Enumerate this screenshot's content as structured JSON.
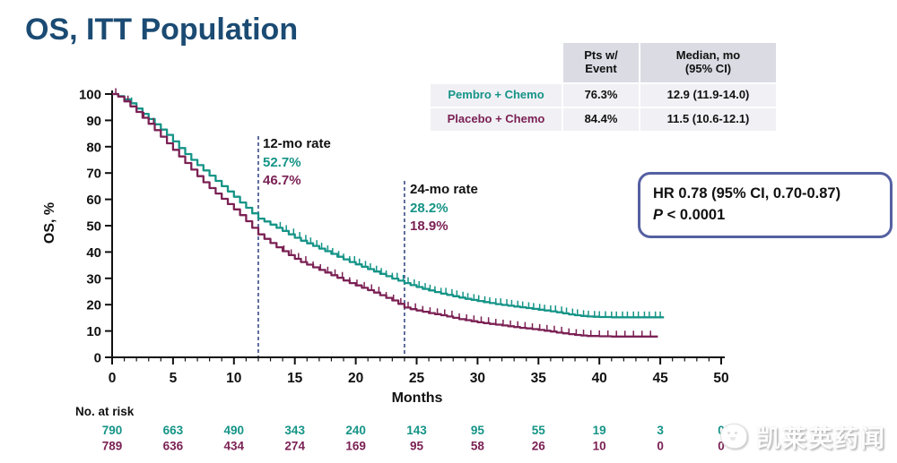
{
  "title": "OS, ITT Population",
  "summary_table": {
    "corner": "",
    "col_pts": "Pts w/\nEvent",
    "col_median": "Median, mo\n(95% CI)",
    "rows": [
      {
        "label": "Pembro + Chemo",
        "pts": "76.3%",
        "median": "12.9 (11.9-14.0)"
      },
      {
        "label": "Placebo + Chemo",
        "pts": "84.4%",
        "median": "11.5 (10.6-12.1)"
      }
    ]
  },
  "annotations": {
    "rate12": {
      "title": "12-mo rate",
      "pembro": "52.7%",
      "placebo": "46.7%"
    },
    "rate24": {
      "title": "24-mo rate",
      "pembro": "28.2%",
      "placebo": "18.9%"
    }
  },
  "hr_box": {
    "line1": "HR 0.78 (95% CI, 0.70-0.87)",
    "p_italic": "P",
    "p_rest": " < 0.0001"
  },
  "axes": {
    "xlabel": "Months",
    "ylabel": "OS, %"
  },
  "at_risk": {
    "label": "No. at risk",
    "months": [
      0,
      5,
      10,
      15,
      20,
      25,
      30,
      35,
      40,
      45,
      50
    ],
    "rows": [
      {
        "name": "Pembro + Chemo",
        "color": "#159487",
        "values": [
          790,
          663,
          490,
          343,
          240,
          143,
          95,
          55,
          19,
          3,
          0
        ]
      },
      {
        "name": "Placebo + Chemo",
        "color": "#7b2154",
        "values": [
          789,
          636,
          434,
          274,
          169,
          95,
          58,
          26,
          10,
          0,
          0
        ]
      }
    ]
  },
  "watermark": {
    "text": "凯莱英药闻"
  },
  "colors": {
    "title": "#1b4b73",
    "teal": "#159487",
    "maroon": "#7b2154",
    "dashed": "#3a4b85",
    "hr_border": "#5560a2",
    "table_header_bg": "#dadbe3",
    "table_row_bg": "#f0f0f5",
    "axis": "#111111"
  },
  "chart_data": {
    "type": "line",
    "subtype": "kaplan-meier",
    "title": "OS, ITT Population",
    "xlabel": "Months",
    "ylabel": "OS, %",
    "xlim": [
      0,
      50
    ],
    "ylim": [
      0,
      100
    ],
    "x_ticks": [
      0,
      5,
      10,
      15,
      20,
      25,
      30,
      35,
      40,
      45,
      50
    ],
    "x_minor_tick_interval": 1,
    "y_ticks": [
      0,
      10,
      20,
      30,
      40,
      50,
      60,
      70,
      80,
      90,
      100
    ],
    "grid": false,
    "legend_position": "none",
    "reference_lines": [
      {
        "x": 12,
        "label": "12-mo rate",
        "top_pct": 84
      },
      {
        "x": 24,
        "label": "24-mo rate",
        "top_pct": 67
      }
    ],
    "series": [
      {
        "name": "Pembro + Chemo",
        "color": "#159487",
        "points": [
          [
            0,
            100
          ],
          [
            0.5,
            99.2
          ],
          [
            1,
            98
          ],
          [
            1.5,
            96.5
          ],
          [
            2,
            94.5
          ],
          [
            2.5,
            92.5
          ],
          [
            3,
            90.5
          ],
          [
            3.5,
            88.5
          ],
          [
            4,
            86.5
          ],
          [
            4.5,
            84.5
          ],
          [
            5,
            82
          ],
          [
            5.5,
            79.5
          ],
          [
            6,
            77.2
          ],
          [
            6.5,
            75
          ],
          [
            7,
            73
          ],
          [
            7.5,
            71
          ],
          [
            8,
            69
          ],
          [
            8.5,
            67
          ],
          [
            9,
            65
          ],
          [
            9.5,
            63
          ],
          [
            10,
            61
          ],
          [
            10.5,
            58.8
          ],
          [
            11,
            56.8
          ],
          [
            11.5,
            54.7
          ],
          [
            12,
            52.7
          ],
          [
            12.5,
            51.6
          ],
          [
            13,
            50.4
          ],
          [
            13.5,
            49.2
          ],
          [
            14,
            48
          ],
          [
            14.5,
            46.7
          ],
          [
            15,
            45.4
          ],
          [
            15.5,
            44.3
          ],
          [
            16,
            43.3
          ],
          [
            16.5,
            42.3
          ],
          [
            17,
            41.3
          ],
          [
            17.5,
            40.3
          ],
          [
            18,
            39.3
          ],
          [
            18.5,
            38.2
          ],
          [
            19,
            37.2
          ],
          [
            19.5,
            36.2
          ],
          [
            20,
            35.3
          ],
          [
            20.5,
            34.4
          ],
          [
            21,
            33.5
          ],
          [
            21.5,
            32.6
          ],
          [
            22,
            31.7
          ],
          [
            22.5,
            30.8
          ],
          [
            23,
            29.9
          ],
          [
            23.5,
            29.1
          ],
          [
            24,
            28.2
          ],
          [
            24.5,
            27.4
          ],
          [
            25,
            26.7
          ],
          [
            25.5,
            26
          ],
          [
            26,
            25.4
          ],
          [
            26.5,
            24.8
          ],
          [
            27,
            24.2
          ],
          [
            27.5,
            23.7
          ],
          [
            28,
            23.2
          ],
          [
            28.5,
            22.7
          ],
          [
            29,
            22.2
          ],
          [
            29.5,
            21.8
          ],
          [
            30,
            21.4
          ],
          [
            30.5,
            21
          ],
          [
            31,
            20.6
          ],
          [
            31.5,
            20.2
          ],
          [
            32,
            19.9
          ],
          [
            32.5,
            19.6
          ],
          [
            33,
            19.3
          ],
          [
            33.5,
            19
          ],
          [
            34,
            18.7
          ],
          [
            34.5,
            18.4
          ],
          [
            35,
            18.1
          ],
          [
            35.5,
            17.8
          ],
          [
            36,
            17.5
          ],
          [
            36.5,
            17.1
          ],
          [
            37,
            16.7
          ],
          [
            37.5,
            16.3
          ],
          [
            38,
            16
          ],
          [
            38.5,
            15.7
          ],
          [
            39,
            15.5
          ],
          [
            39.5,
            15.4
          ],
          [
            40,
            15.3
          ],
          [
            41,
            15.2
          ],
          [
            42,
            15.2
          ],
          [
            43,
            15.2
          ],
          [
            44,
            15.2
          ],
          [
            45.3,
            15.2
          ]
        ],
        "censor_marks": [
          1.6,
          13.8,
          14.3,
          14.9,
          15.4,
          15.9,
          16.3,
          16.8,
          17.2,
          17.7,
          18.1,
          18.6,
          19,
          19.5,
          19.9,
          20.3,
          20.8,
          21.2,
          21.7,
          22.1,
          22.5,
          23,
          23.4,
          23.9,
          24.3,
          24.8,
          25.2,
          25.7,
          26.1,
          26.5,
          27,
          27.4,
          27.9,
          28.3,
          28.8,
          29.2,
          29.7,
          30.1,
          30.6,
          31,
          31.5,
          31.9,
          32.4,
          32.8,
          33.3,
          33.7,
          34.2,
          34.6,
          35.1,
          35.5,
          36,
          36.4,
          36.9,
          37.3,
          37.8,
          38.2,
          38.7,
          39.1,
          39.6,
          40,
          40.5,
          41,
          41.4,
          41.9,
          42.3,
          42.8,
          43.2,
          43.7,
          44.1,
          44.6,
          45
        ]
      },
      {
        "name": "Placebo + Chemo",
        "color": "#7b2154",
        "points": [
          [
            0,
            100
          ],
          [
            0.5,
            99
          ],
          [
            1,
            97.2
          ],
          [
            1.5,
            95.3
          ],
          [
            2,
            93.2
          ],
          [
            2.5,
            91
          ],
          [
            3,
            88.7
          ],
          [
            3.5,
            86.3
          ],
          [
            4,
            83.8
          ],
          [
            4.5,
            81.3
          ],
          [
            5,
            78.8
          ],
          [
            5.5,
            76.3
          ],
          [
            6,
            73.8
          ],
          [
            6.5,
            71.3
          ],
          [
            7,
            68.8
          ],
          [
            7.5,
            66.5
          ],
          [
            8,
            64.3
          ],
          [
            8.5,
            62.2
          ],
          [
            9,
            60.2
          ],
          [
            9.5,
            58.2
          ],
          [
            10,
            56.2
          ],
          [
            10.5,
            54
          ],
          [
            11,
            51.7
          ],
          [
            11.5,
            49.2
          ],
          [
            12,
            46.7
          ],
          [
            12.5,
            45
          ],
          [
            13,
            43.4
          ],
          [
            13.5,
            41.8
          ],
          [
            14,
            40.3
          ],
          [
            14.5,
            38.8
          ],
          [
            15,
            37.4
          ],
          [
            15.5,
            36.2
          ],
          [
            16,
            35.2
          ],
          [
            16.5,
            34.2
          ],
          [
            17,
            33.2
          ],
          [
            17.5,
            32.2
          ],
          [
            18,
            31.2
          ],
          [
            18.5,
            30.2
          ],
          [
            19,
            29.2
          ],
          [
            19.5,
            28.2
          ],
          [
            20,
            27.3
          ],
          [
            20.5,
            26.4
          ],
          [
            21,
            25.5
          ],
          [
            21.5,
            24.6
          ],
          [
            22,
            23.6
          ],
          [
            22.5,
            22.6
          ],
          [
            23,
            21.6
          ],
          [
            23.5,
            20.3
          ],
          [
            24,
            18.9
          ],
          [
            24.5,
            18.3
          ],
          [
            25,
            17.8
          ],
          [
            25.5,
            17.3
          ],
          [
            26,
            16.8
          ],
          [
            26.5,
            16.4
          ],
          [
            27,
            16
          ],
          [
            27.5,
            15.5
          ],
          [
            28,
            15
          ],
          [
            28.5,
            14.5
          ],
          [
            29,
            14.1
          ],
          [
            29.5,
            13.7
          ],
          [
            30,
            13.3
          ],
          [
            30.5,
            13
          ],
          [
            31,
            12.7
          ],
          [
            31.5,
            12.4
          ],
          [
            32,
            12.1
          ],
          [
            32.5,
            11.8
          ],
          [
            33,
            11.5
          ],
          [
            33.5,
            11.2
          ],
          [
            34,
            11
          ],
          [
            34.5,
            10.7
          ],
          [
            35,
            10.4
          ],
          [
            35.5,
            10.1
          ],
          [
            36,
            9.8
          ],
          [
            36.5,
            9.4
          ],
          [
            37,
            9.1
          ],
          [
            37.5,
            8.8
          ],
          [
            38,
            8.5
          ],
          [
            38.5,
            8.3
          ],
          [
            39,
            8.1
          ],
          [
            40,
            8
          ],
          [
            41,
            7.9
          ],
          [
            42,
            7.9
          ],
          [
            43,
            7.9
          ],
          [
            44.8,
            7.9
          ]
        ],
        "censor_marks": [
          0.3,
          1.3,
          2.6,
          3.4,
          14.1,
          14.7,
          15.3,
          15.9,
          16.5,
          17.1,
          17.7,
          18.3,
          18.9,
          19.5,
          20.1,
          20.7,
          21.3,
          21.9,
          22.5,
          23.1,
          23.7,
          24.3,
          24.9,
          25.5,
          26.1,
          26.7,
          27.3,
          27.9,
          28.5,
          29.1,
          29.7,
          30.3,
          30.9,
          31.5,
          32.1,
          32.7,
          33.3,
          33.9,
          34.5,
          35.1,
          35.7,
          36.3,
          36.9,
          37.5,
          38.1,
          38.7,
          39.3,
          40,
          40.7,
          41.4,
          42.1,
          42.8,
          43.5,
          44.2
        ]
      }
    ]
  }
}
